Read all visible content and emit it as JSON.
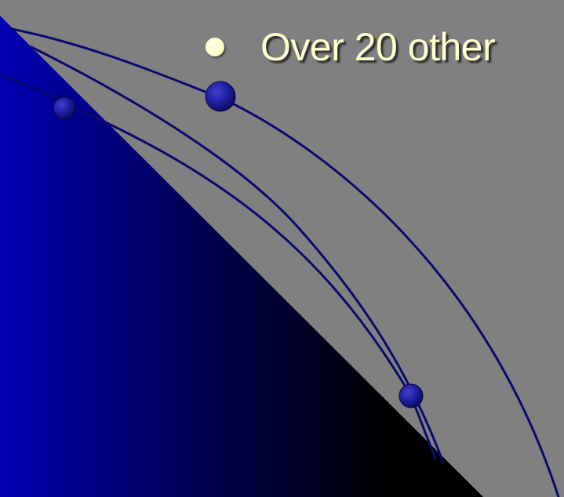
{
  "slide": {
    "bullet_text": "Over 20 other",
    "colors": {
      "background": "#808080",
      "gradient_dark": "#000000",
      "gradient_blue": "#0000b4",
      "orbit_line": "#0a0a6e",
      "planet": "#1a1a9a",
      "bullet_text": "#ffffcc",
      "bullet_dot": "#ffffc8"
    }
  }
}
